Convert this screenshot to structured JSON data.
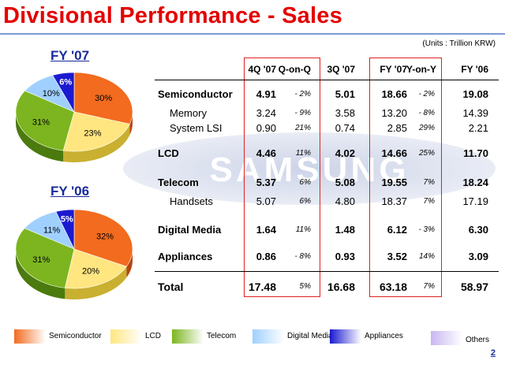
{
  "title": "Divisional Performance - Sales",
  "units": "(Units : Trillion KRW)",
  "watermark": "SAMSUNG",
  "page_number": "2",
  "colors": {
    "title": "#e40000",
    "semiconductor": "#f26b1e",
    "lcd": "#ffe680",
    "telecom": "#7cb51f",
    "digital_media": "#9fd0ff",
    "appliances": "#1a1ad0",
    "others": "#c9b6f2",
    "highlight_box": "#e02020"
  },
  "pies": {
    "fy07": {
      "label": "FY '07",
      "slices": [
        {
          "name": "Semiconductor",
          "percent": 30,
          "label": "30%"
        },
        {
          "name": "LCD",
          "percent": 23,
          "label": "23%"
        },
        {
          "name": "Telecom",
          "percent": 31,
          "label": "31%"
        },
        {
          "name": "Digital Media",
          "percent": 10,
          "label": "10%"
        },
        {
          "name": "Appliances",
          "percent": 6,
          "label": "6%"
        }
      ]
    },
    "fy06": {
      "label": "FY '06",
      "slices": [
        {
          "name": "Semiconductor",
          "percent": 32,
          "label": "32%"
        },
        {
          "name": "LCD",
          "percent": 20,
          "label": "20%"
        },
        {
          "name": "Telecom",
          "percent": 31,
          "label": "31%"
        },
        {
          "name": "Digital Media",
          "percent": 11,
          "label": "11%"
        },
        {
          "name": "Appliances",
          "percent": 5,
          "label": "5%"
        }
      ]
    }
  },
  "table": {
    "headers": {
      "q4_07": "4Q '07",
      "qoq": "Q-on-Q",
      "q3_07": "3Q '07",
      "fy07": "FY '07",
      "yoy": "Y-on-Y",
      "fy06": "FY '06"
    },
    "rows": [
      {
        "label": "Semiconductor",
        "q4_07": "4.91",
        "qoq": "- 2%",
        "q3_07": "5.01",
        "fy07": "18.66",
        "yoy": "- 2%",
        "fy06": "19.08"
      },
      {
        "label": "Memory",
        "q4_07": "3.24",
        "qoq": "- 9%",
        "q3_07": "3.58",
        "fy07": "13.20",
        "yoy": "- 8%",
        "fy06": "14.39"
      },
      {
        "label": "System LSI",
        "q4_07": "0.90",
        "qoq": "21%",
        "q3_07": "0.74",
        "fy07": "2.85",
        "yoy": "29%",
        "fy06": "2.21"
      },
      {
        "label": "LCD",
        "q4_07": "4.46",
        "qoq": "11%",
        "q3_07": "4.02",
        "fy07": "14.66",
        "yoy": "25%",
        "fy06": "11.70"
      },
      {
        "label": "Telecom",
        "q4_07": "5.37",
        "qoq": "6%",
        "q3_07": "5.08",
        "fy07": "19.55",
        "yoy": "7%",
        "fy06": "18.24"
      },
      {
        "label": "Handsets",
        "q4_07": "5.07",
        "qoq": "6%",
        "q3_07": "4.80",
        "fy07": "18.37",
        "yoy": "7%",
        "fy06": "17.19"
      },
      {
        "label": "Digital Media",
        "q4_07": "1.64",
        "qoq": "11%",
        "q3_07": "1.48",
        "fy07": "6.12",
        "yoy": "- 3%",
        "fy06": "6.30"
      },
      {
        "label": "Appliances",
        "q4_07": "0.86",
        "qoq": "- 8%",
        "q3_07": "0.93",
        "fy07": "3.52",
        "yoy": "14%",
        "fy06": "3.09"
      },
      {
        "label": "Total",
        "q4_07": "17.48",
        "qoq": "5%",
        "q3_07": "16.68",
        "fy07": "63.18",
        "yoy": "7%",
        "fy06": "58.97"
      }
    ]
  },
  "legend": [
    {
      "label": "Semiconductor",
      "color": "#f26b1e"
    },
    {
      "label": "LCD",
      "color": "#ffe680"
    },
    {
      "label": "Telecom",
      "color": "#7cb51f"
    },
    {
      "label": "Digital Media",
      "color": "#9fd0ff"
    },
    {
      "label": "Appliances",
      "color": "#1a1ad0"
    },
    {
      "label": "Others",
      "color": "#c9b6f2"
    }
  ]
}
